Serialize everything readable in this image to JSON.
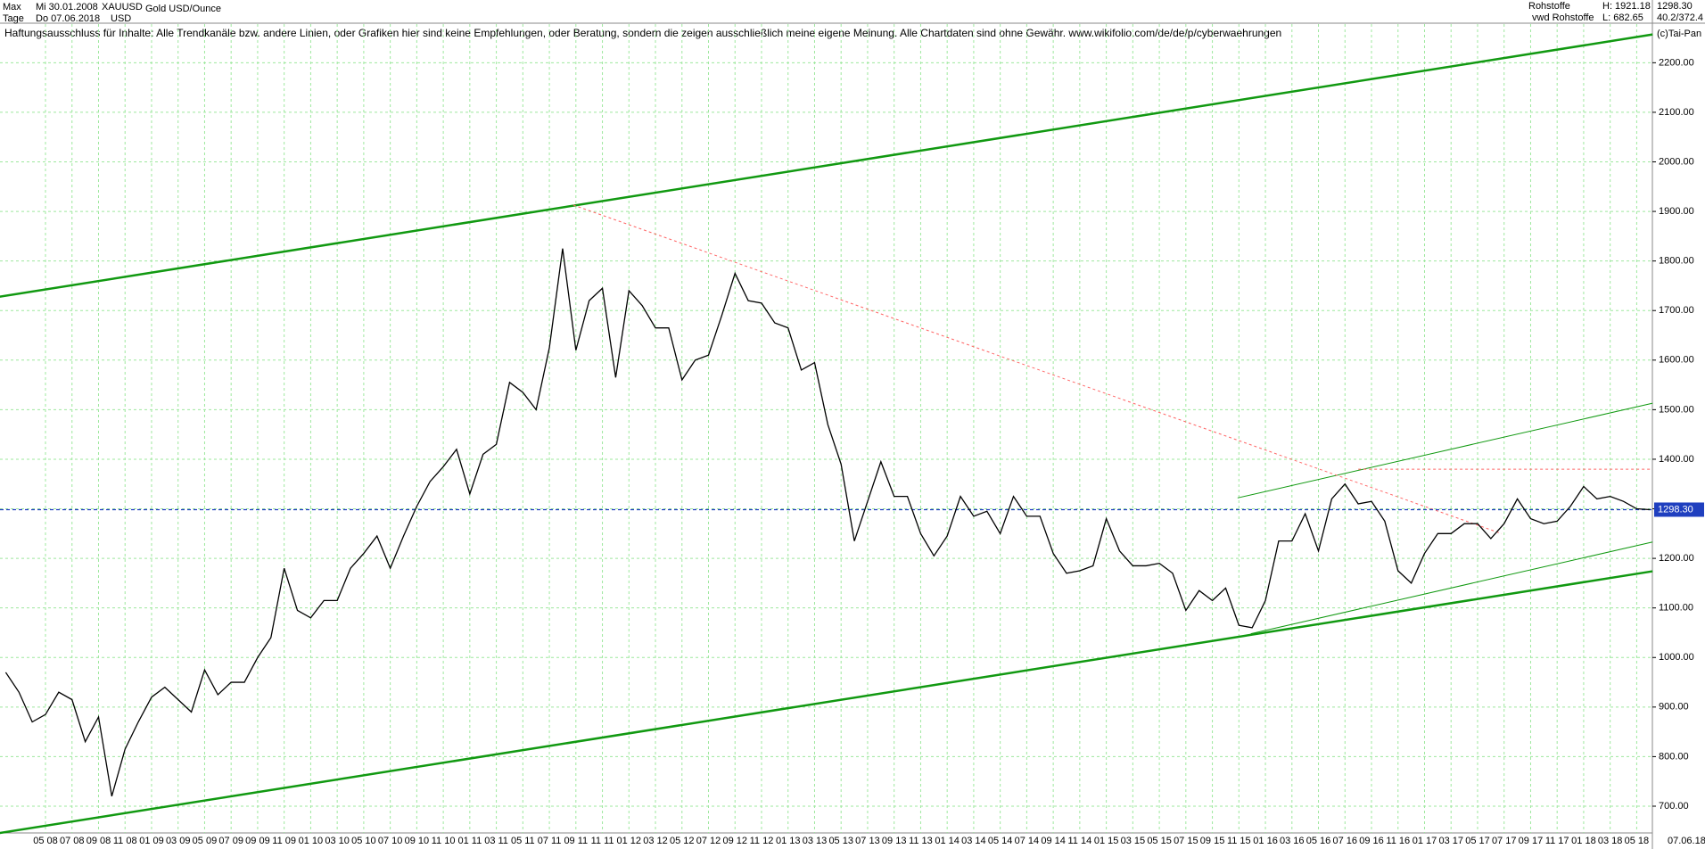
{
  "header": {
    "range": "Max",
    "start": "Mi 30.01.2008",
    "symbol": "XAUUSD",
    "name": "Gold USD/Ounce",
    "interval": "Tage",
    "end": "Do 07.06.2018",
    "currency": "USD",
    "group": "Rohstoffe",
    "high": "H: 1921.18",
    "source": "vwd Rohstoffe",
    "low": "L: 682.65",
    "ratio": "40.2/372.4",
    "copyright": "(c)Tai-Pan"
  },
  "chart_data": {
    "type": "line",
    "title": "Haftungsausschluss für Inhalte: Alle Trendkanäle bzw. andere Linien, oder Grafiken hier sind keine Empfehlungen, oder Beratung, sondern die zeigen ausschließlich meine eigene Meinung. Alle Chartdaten sind ohne Gewähr.  www.wikifolio.com/de/de/p/cyberwaehrungen",
    "categories": [
      null,
      null,
      null,
      "05 08",
      null,
      "07 08",
      null,
      "09 08",
      null,
      "11 08",
      null,
      "01 09",
      null,
      "03 09",
      null,
      "05 09",
      null,
      "07 09",
      null,
      "09 09",
      null,
      "11 09",
      null,
      "01 10",
      null,
      "03 10",
      null,
      "05 10",
      null,
      "07 10",
      null,
      "09 10",
      null,
      "11 10",
      null,
      "01 11",
      null,
      "03 11",
      null,
      "05 11",
      null,
      "07 11",
      null,
      "09 11",
      null,
      "11 11",
      null,
      "01 12",
      null,
      "03 12",
      null,
      "05 12",
      null,
      "07 12",
      null,
      "09 12",
      null,
      "11 12",
      null,
      "01 13",
      null,
      "03 13",
      null,
      "05 13",
      null,
      "07 13",
      null,
      "09 13",
      null,
      "11 13",
      null,
      "01 14",
      null,
      "03 14",
      null,
      "05 14",
      null,
      "07 14",
      null,
      "09 14",
      null,
      "11 14",
      null,
      "01 15",
      null,
      "03 15",
      null,
      "05 15",
      null,
      "07 15",
      null,
      "09 15",
      null,
      "11 15",
      null,
      "01 16",
      null,
      "03 16",
      null,
      "05 16",
      null,
      "07 16",
      null,
      "09 16",
      null,
      "11 16",
      null,
      "01 17",
      null,
      "03 17",
      null,
      "05 17",
      null,
      "07 17",
      null,
      "09 17",
      null,
      "11 17",
      null,
      "01 18",
      null,
      "03 18",
      null,
      "05 18",
      null
    ],
    "x_end_label": "07.06.18",
    "series": [
      {
        "name": "XAUUSD",
        "color": "#000000",
        "values": [
          970,
          930,
          870,
          885,
          930,
          915,
          830,
          880,
          720,
          815,
          870,
          920,
          940,
          915,
          890,
          975,
          925,
          950,
          950,
          1000,
          1040,
          1180,
          1095,
          1080,
          1115,
          1115,
          1180,
          1210,
          1245,
          1180,
          1245,
          1305,
          1355,
          1385,
          1420,
          1330,
          1410,
          1430,
          1555,
          1535,
          1500,
          1625,
          1825,
          1620,
          1720,
          1745,
          1565,
          1740,
          1710,
          1665,
          1665,
          1560,
          1600,
          1610,
          1690,
          1775,
          1720,
          1715,
          1675,
          1665,
          1580,
          1595,
          1470,
          1390,
          1235,
          1315,
          1395,
          1325,
          1325,
          1250,
          1205,
          1245,
          1325,
          1285,
          1295,
          1250,
          1325,
          1285,
          1285,
          1210,
          1170,
          1175,
          1185,
          1280,
          1215,
          1185,
          1185,
          1190,
          1170,
          1095,
          1135,
          1115,
          1140,
          1065,
          1060,
          1115,
          1235,
          1235,
          1290,
          1215,
          1320,
          1350,
          1310,
          1315,
          1275,
          1175,
          1150,
          1210,
          1250,
          1250,
          1270,
          1270,
          1240,
          1270,
          1320,
          1280,
          1270,
          1275,
          1305,
          1345,
          1320,
          1325,
          1315,
          1300,
          1298.3
        ]
      }
    ],
    "last_price": {
      "value": 1298.3,
      "label": "1298.30",
      "color": "#1f3fbf"
    },
    "trendlines": [
      {
        "color": "#119911",
        "width": 2.5,
        "dashed": false,
        "x": [
          -0.44,
          124.2
        ],
        "values": [
          1728,
          2257
        ]
      },
      {
        "color": "#119911",
        "width": 2.5,
        "dashed": false,
        "x": [
          -0.44,
          124.2
        ],
        "values": [
          646,
          1174
        ]
      },
      {
        "color": "#119911",
        "width": 1,
        "dashed": false,
        "x": [
          92.9,
          124.2
        ],
        "values": [
          1322,
          1513
        ]
      },
      {
        "color": "#119911",
        "width": 1,
        "dashed": false,
        "x": [
          93.9,
          124.2
        ],
        "values": [
          1048,
          1233
        ]
      },
      {
        "color": "#ff6666",
        "width": 1,
        "dashed": true,
        "x": [
          42.8,
          112.8
        ],
        "values": [
          1913,
          1250
        ]
      },
      {
        "color": "#ff6666",
        "width": 1,
        "dashed": true,
        "x": [
          102,
          124.2
        ],
        "values": [
          1380,
          1380
        ]
      }
    ],
    "ylim": [
      646,
      2278
    ],
    "yticks": [
      {
        "value": 700,
        "label": "700.00"
      },
      {
        "value": 800,
        "label": "800.00"
      },
      {
        "value": 900,
        "label": "900.00"
      },
      {
        "value": 1000,
        "label": "1000.00"
      },
      {
        "value": 1100,
        "label": "1100.00"
      },
      {
        "value": 1200,
        "label": "1200.00"
      },
      {
        "value": 1300,
        "label": "1300.00"
      },
      {
        "value": 1400,
        "label": "1400.00"
      },
      {
        "value": 1500,
        "label": "1500.00"
      },
      {
        "value": 1600,
        "label": "1600.00"
      },
      {
        "value": 1700,
        "label": "1700.00"
      },
      {
        "value": 1800,
        "label": "1800.00"
      },
      {
        "value": 1900,
        "label": "1900.00"
      },
      {
        "value": 2000,
        "label": "2000.00"
      },
      {
        "value": 2100,
        "label": "2100.00"
      },
      {
        "value": 2200,
        "label": "2200.00"
      }
    ],
    "grid": true
  }
}
